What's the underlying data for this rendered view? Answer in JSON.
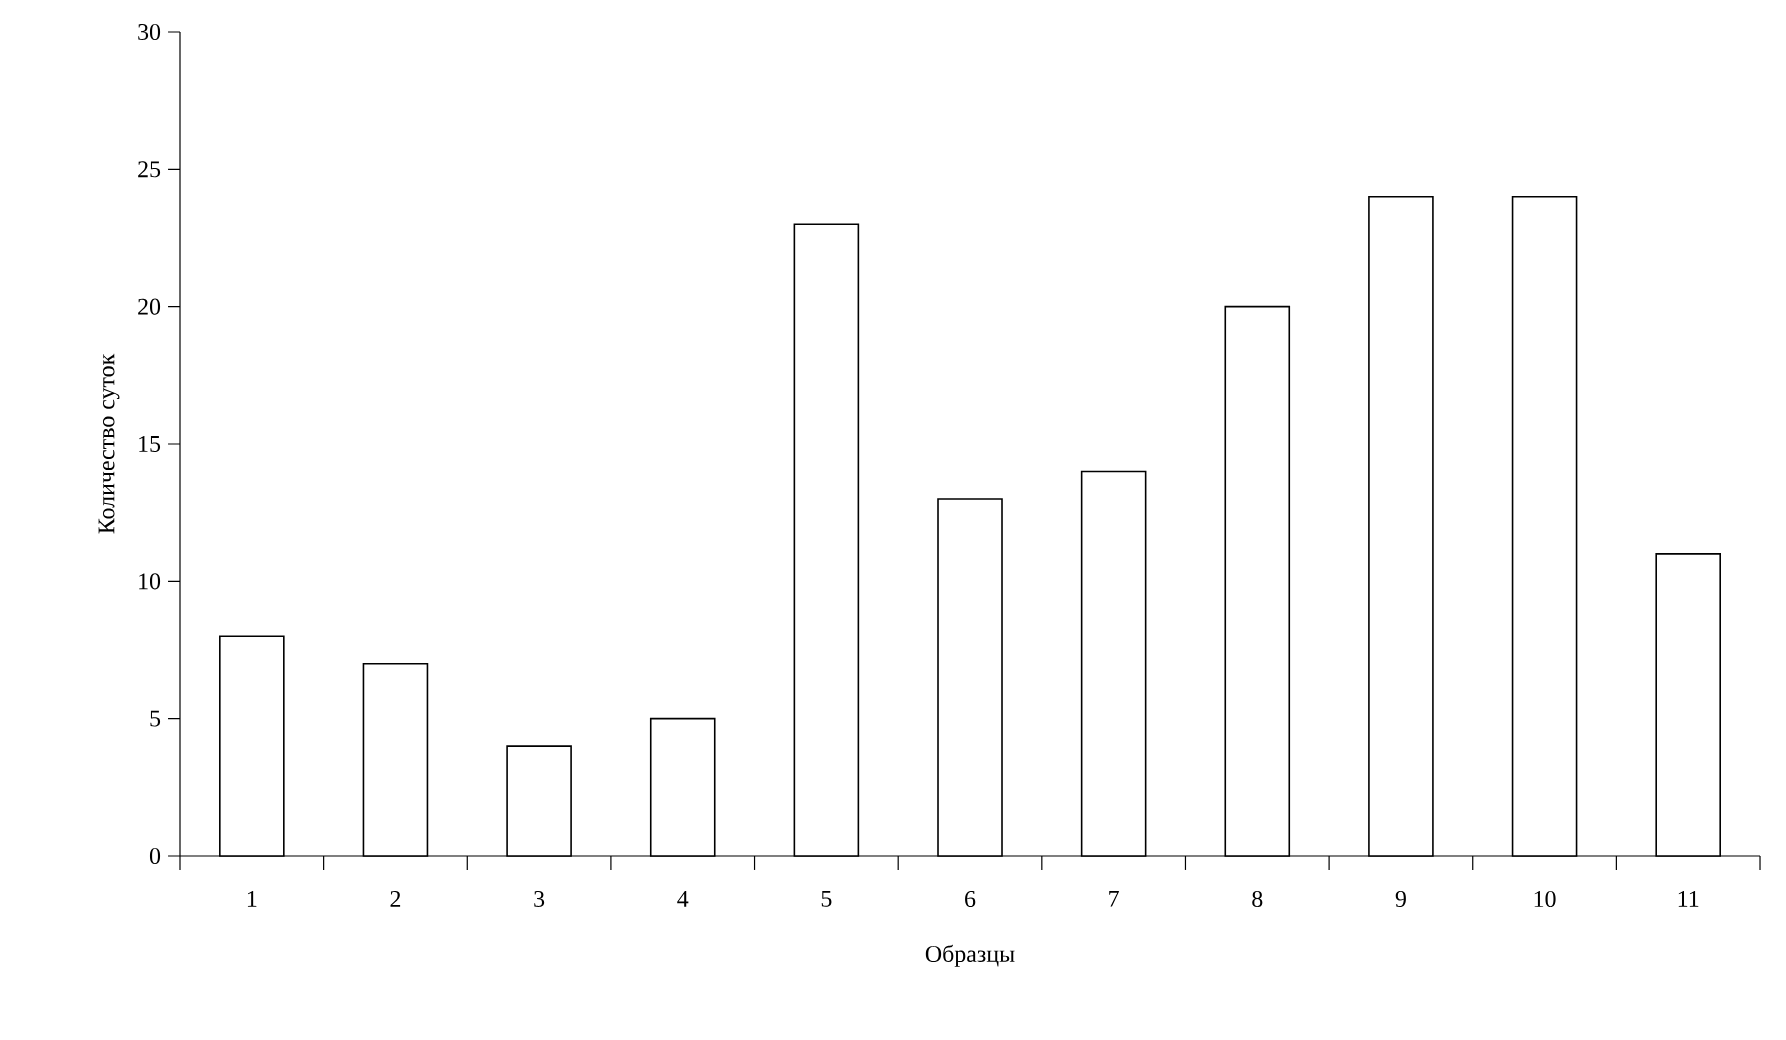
{
  "chart_data": {
    "type": "bar",
    "xlabel": "Образцы",
    "ylabel": "Количество суток",
    "categories": [
      "1",
      "2",
      "3",
      "4",
      "5",
      "6",
      "7",
      "8",
      "9",
      "10",
      "11"
    ],
    "values": [
      8,
      7,
      4,
      5,
      23,
      13,
      14,
      20,
      24,
      24,
      11
    ],
    "color": "#ffffff",
    "ylim": [
      0,
      30
    ],
    "yticks": [
      0,
      5,
      10,
      15,
      20,
      25,
      30
    ]
  }
}
